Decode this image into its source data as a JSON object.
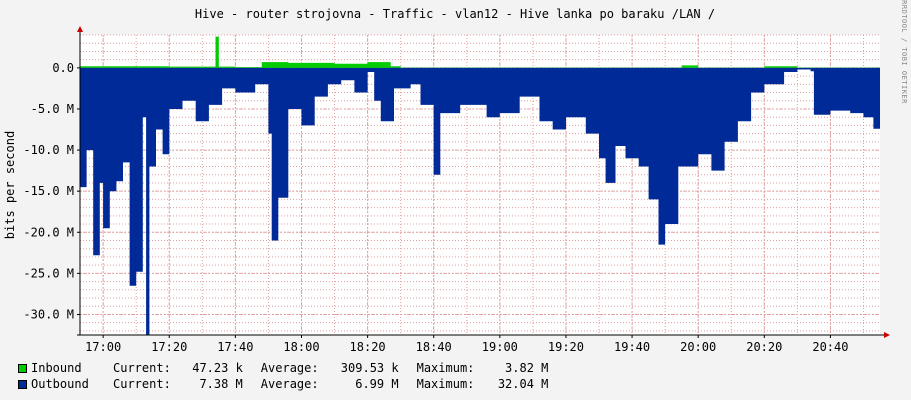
{
  "chart_data": {
    "type": "area",
    "title": "Hive - router strojovna - Traffic - vlan12 - Hive lanka po baraku /LAN /",
    "ylabel": "bits per second",
    "watermark": "RRDTOOL / TOBI OETIKER",
    "ylim": [
      -32.5,
      4.0
    ],
    "y_unit": "M",
    "y_ticks": [
      {
        "value": 0,
        "label": "0.0"
      },
      {
        "value": -5,
        "label": "-5.0 M"
      },
      {
        "value": -10,
        "label": "-10.0 M"
      },
      {
        "value": -15,
        "label": "-15.0 M"
      },
      {
        "value": -20,
        "label": "-20.0 M"
      },
      {
        "value": -25,
        "label": "-25.0 M"
      },
      {
        "value": -30,
        "label": "-30.0 M"
      }
    ],
    "x_range": [
      "16:53",
      "20:55"
    ],
    "x_ticks": [
      "17:00",
      "17:20",
      "17:40",
      "18:00",
      "18:20",
      "18:40",
      "19:00",
      "19:20",
      "19:40",
      "20:00",
      "20:20",
      "20:40"
    ],
    "grid": true,
    "colors": {
      "inbound": "#00cc00",
      "outbound": "#002a97",
      "grid": "#e0a0a0",
      "axis": "#000000",
      "arrow": "#cc0000",
      "background": "#f3f3f3",
      "canvas": "#ffffff"
    },
    "series": [
      {
        "name": "Inbound",
        "points": [
          [
            "16:53",
            0.2
          ],
          [
            "17:00",
            0.2
          ],
          [
            "17:20",
            0.15
          ],
          [
            "17:30",
            0.15
          ],
          [
            "17:34",
            3.8
          ],
          [
            "17:35",
            0.15
          ],
          [
            "17:40",
            0.1
          ],
          [
            "17:48",
            0.7
          ],
          [
            "17:56",
            0.6
          ],
          [
            "18:10",
            0.5
          ],
          [
            "18:20",
            0.7
          ],
          [
            "18:27",
            0.2
          ],
          [
            "18:30",
            0.05
          ],
          [
            "19:00",
            0.05
          ],
          [
            "19:40",
            0.05
          ],
          [
            "19:55",
            0.3
          ],
          [
            "20:00",
            0.05
          ],
          [
            "20:20",
            0.2
          ],
          [
            "20:30",
            0.05
          ],
          [
            "20:55",
            0.05
          ]
        ]
      },
      {
        "name": "Outbound",
        "points": [
          [
            "16:53",
            -14.5
          ],
          [
            "16:55",
            -10.0
          ],
          [
            "16:57",
            -22.8
          ],
          [
            "16:59",
            -14.0
          ],
          [
            "17:00",
            -19.5
          ],
          [
            "17:02",
            -15.0
          ],
          [
            "17:04",
            -13.8
          ],
          [
            "17:06",
            -11.5
          ],
          [
            "17:08",
            -26.5
          ],
          [
            "17:10",
            -24.8
          ],
          [
            "17:12",
            -6.0
          ],
          [
            "17:13",
            -32.5
          ],
          [
            "17:14",
            -12.0
          ],
          [
            "17:16",
            -7.5
          ],
          [
            "17:18",
            -10.5
          ],
          [
            "17:20",
            -5.0
          ],
          [
            "17:24",
            -4.0
          ],
          [
            "17:28",
            -6.5
          ],
          [
            "17:32",
            -4.5
          ],
          [
            "17:36",
            -2.5
          ],
          [
            "17:40",
            -3.0
          ],
          [
            "17:46",
            -2.0
          ],
          [
            "17:50",
            -8.0
          ],
          [
            "17:51",
            -21.0
          ],
          [
            "17:53",
            -15.8
          ],
          [
            "17:56",
            -5.0
          ],
          [
            "18:00",
            -7.0
          ],
          [
            "18:04",
            -3.5
          ],
          [
            "18:08",
            -2.0
          ],
          [
            "18:12",
            -1.5
          ],
          [
            "18:16",
            -3.0
          ],
          [
            "18:20",
            -0.5
          ],
          [
            "18:22",
            -4.0
          ],
          [
            "18:24",
            -6.5
          ],
          [
            "18:28",
            -2.5
          ],
          [
            "18:33",
            -2.0
          ],
          [
            "18:36",
            -4.5
          ],
          [
            "18:40",
            -13.0
          ],
          [
            "18:42",
            -5.5
          ],
          [
            "18:48",
            -4.5
          ],
          [
            "18:56",
            -6.0
          ],
          [
            "19:00",
            -5.5
          ],
          [
            "19:06",
            -3.5
          ],
          [
            "19:12",
            -6.5
          ],
          [
            "19:16",
            -7.5
          ],
          [
            "19:20",
            -6.0
          ],
          [
            "19:26",
            -8.0
          ],
          [
            "19:30",
            -11.0
          ],
          [
            "19:32",
            -14.0
          ],
          [
            "19:35",
            -9.5
          ],
          [
            "19:38",
            -11.0
          ],
          [
            "19:42",
            -12.0
          ],
          [
            "19:45",
            -16.0
          ],
          [
            "19:48",
            -21.5
          ],
          [
            "19:50",
            -19.0
          ],
          [
            "19:54",
            -12.0
          ],
          [
            "20:00",
            -10.5
          ],
          [
            "20:04",
            -12.5
          ],
          [
            "20:08",
            -9.0
          ],
          [
            "20:12",
            -6.5
          ],
          [
            "20:16",
            -3.0
          ],
          [
            "20:20",
            -2.0
          ],
          [
            "20:26",
            -0.5
          ],
          [
            "20:30",
            -0.2
          ],
          [
            "20:34",
            -0.4
          ],
          [
            "20:35",
            -5.7
          ],
          [
            "20:40",
            -5.2
          ],
          [
            "20:46",
            -5.5
          ],
          [
            "20:50",
            -6.0
          ],
          [
            "20:53",
            -7.4
          ],
          [
            "20:55",
            -6.3
          ]
        ]
      }
    ],
    "legend": [
      {
        "name": "Inbound",
        "current": "47.23 k",
        "average": "309.53 k",
        "maximum": "3.82 M"
      },
      {
        "name": "Outbound",
        "current": "7.38 M",
        "average": "6.99 M",
        "maximum": "32.04 M"
      }
    ],
    "legend_labels": {
      "current": "Current:",
      "average": "Average:",
      "maximum": "Maximum:"
    }
  }
}
